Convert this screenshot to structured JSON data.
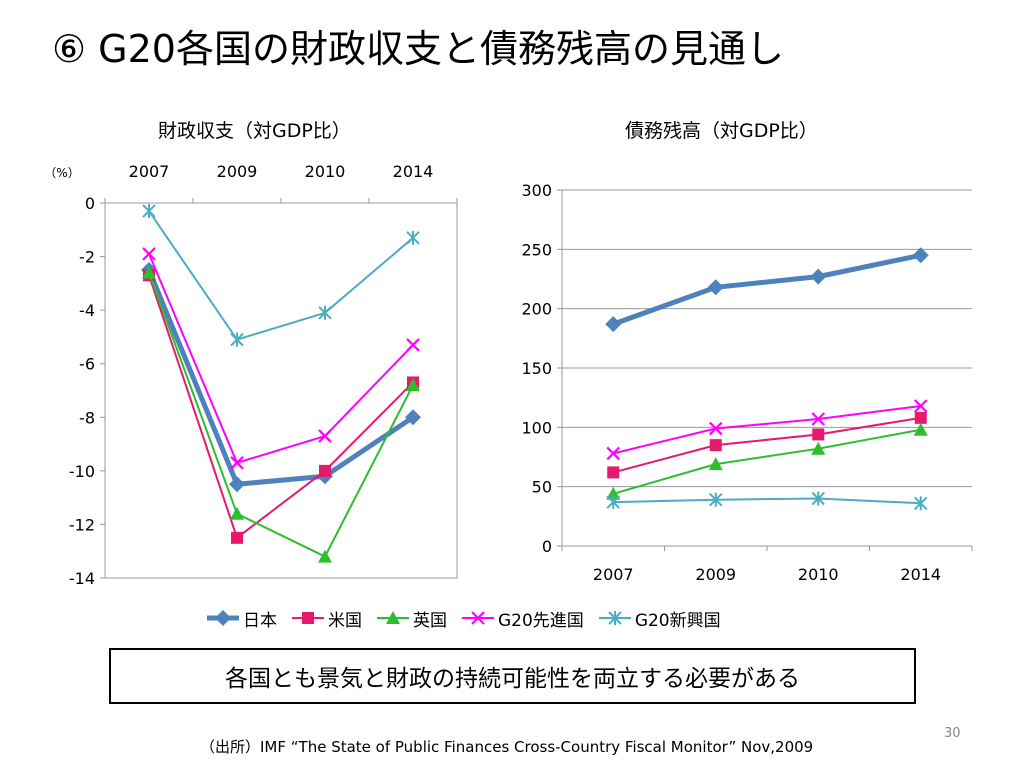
{
  "slide": {
    "title": "⑥ G20各国の財政収支と債務残高の見通し",
    "left_chart_title": "財政収支（対GDP比）",
    "right_chart_title": "債務残高（対GDP比）",
    "note": "各国とも景気と財政の持続可能性を両立する必要がある",
    "source": "（出所）IMF “The State of Public Finances Cross-Country Fiscal Monitor” Nov,2009",
    "page_number": "30"
  },
  "legend": [
    {
      "label": "日本",
      "color": "#4F81BD",
      "marker": "diamond"
    },
    {
      "label": "米国",
      "color": "#E6196E",
      "marker": "square"
    },
    {
      "label": "英国",
      "color": "#2DBE2D",
      "marker": "triangle"
    },
    {
      "label": "G20先進国",
      "color": "#FF00FF",
      "marker": "x"
    },
    {
      "label": "G20新興国",
      "color": "#4BACC6",
      "marker": "star"
    }
  ],
  "chart_data": [
    {
      "type": "line",
      "title": "財政収支（対GDP比）",
      "unit_label": "（%）",
      "categories": [
        "2007",
        "2009",
        "2010",
        "2014"
      ],
      "ylim": [
        -14,
        0
      ],
      "yticks": [
        "0",
        "-2",
        "-4",
        "-6",
        "-8",
        "-10",
        "-12",
        "-14"
      ],
      "grid": false,
      "legend": "bottom",
      "x_axis_position": "top",
      "series": [
        {
          "name": "日本",
          "values": [
            -2.5,
            -10.5,
            -10.2,
            -8.0
          ],
          "color": "#4F81BD",
          "marker": "diamond",
          "width": 5
        },
        {
          "name": "米国",
          "values": [
            -2.7,
            -12.5,
            -10.0,
            -6.7
          ],
          "color": "#E6196E",
          "marker": "square",
          "width": 2
        },
        {
          "name": "英国",
          "values": [
            -2.6,
            -11.6,
            -13.2,
            -6.8
          ],
          "color": "#2DBE2D",
          "marker": "triangle",
          "width": 2
        },
        {
          "name": "G20先進国",
          "values": [
            -1.9,
            -9.7,
            -8.7,
            -5.3
          ],
          "color": "#FF00FF",
          "marker": "x",
          "width": 2
        },
        {
          "name": "G20新興国",
          "values": [
            -0.3,
            -5.1,
            -4.1,
            -1.3
          ],
          "color": "#4BACC6",
          "marker": "star",
          "width": 2
        }
      ]
    },
    {
      "type": "line",
      "title": "債務残高（対GDP比）",
      "categories": [
        "2007",
        "2009",
        "2010",
        "2014"
      ],
      "ylim": [
        0,
        300
      ],
      "yticks": [
        "300",
        "250",
        "200",
        "150",
        "100",
        "50",
        "0"
      ],
      "grid": true,
      "legend": "bottom",
      "x_axis_position": "bottom",
      "series": [
        {
          "name": "日本",
          "values": [
            187,
            218,
            227,
            245
          ],
          "color": "#4F81BD",
          "marker": "diamond",
          "width": 5
        },
        {
          "name": "米国",
          "values": [
            62,
            85,
            94,
            108
          ],
          "color": "#E6196E",
          "marker": "square",
          "width": 2
        },
        {
          "name": "英国",
          "values": [
            44,
            69,
            82,
            98
          ],
          "color": "#2DBE2D",
          "marker": "triangle",
          "width": 2
        },
        {
          "name": "G20先進国",
          "values": [
            78,
            99,
            107,
            118
          ],
          "color": "#FF00FF",
          "marker": "x",
          "width": 2
        },
        {
          "name": "G20新興国",
          "values": [
            37,
            39,
            40,
            36
          ],
          "color": "#4BACC6",
          "marker": "star",
          "width": 2
        }
      ]
    }
  ]
}
